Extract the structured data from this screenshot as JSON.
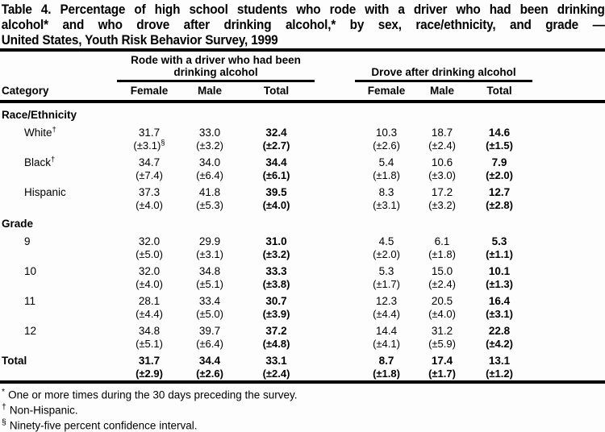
{
  "title_lines": [
    "Table 4. Percentage of high school students who rode with a driver who had been drinking",
    "alcohol* and who drove after drinking alcohol,* by sex, race/ethnicity, and grade —",
    "United States, Youth Risk Behavior Survey, 1999"
  ],
  "table": {
    "category_header": "Category",
    "groups": [
      {
        "label": "Rode with a driver who had been drinking alcohol"
      },
      {
        "label": "Drove after drinking alcohol"
      }
    ],
    "subheaders": [
      "Female",
      "Male",
      "Total"
    ],
    "rows": [
      {
        "type": "section",
        "label": "Race/Ethnicity"
      },
      {
        "type": "data",
        "label": "White",
        "label_sup": "†",
        "indent": true,
        "cells": [
          {
            "v": "31.7",
            "ci": "(±3.1)",
            "ci_sup": "§"
          },
          {
            "v": "33.0",
            "ci": "(±3.2)"
          },
          {
            "v": "32.4",
            "ci": "(±2.7)"
          },
          {
            "v": "10.3",
            "ci": "(±2.6)"
          },
          {
            "v": "18.7",
            "ci": "(±2.4)"
          },
          {
            "v": "14.6",
            "ci": "(±1.5)"
          }
        ]
      },
      {
        "type": "data",
        "label": "Black",
        "label_sup": "†",
        "indent": true,
        "cells": [
          {
            "v": "34.7",
            "ci": "(±7.4)"
          },
          {
            "v": "34.0",
            "ci": "(±6.4)"
          },
          {
            "v": "34.4",
            "ci": "(±6.1)"
          },
          {
            "v": "5.4",
            "ci": "(±1.8)"
          },
          {
            "v": "10.6",
            "ci": "(±3.0)"
          },
          {
            "v": "7.9",
            "ci": "(±2.0)"
          }
        ]
      },
      {
        "type": "data",
        "label": "Hispanic",
        "indent": true,
        "cells": [
          {
            "v": "37.3",
            "ci": "(±4.0)"
          },
          {
            "v": "41.8",
            "ci": "(±5.3)"
          },
          {
            "v": "39.5",
            "ci": "(±4.0)"
          },
          {
            "v": "8.3",
            "ci": "(±3.1)"
          },
          {
            "v": "17.2",
            "ci": "(±3.2)"
          },
          {
            "v": "12.7",
            "ci": "(±2.8)"
          }
        ]
      },
      {
        "type": "section",
        "label": "Grade"
      },
      {
        "type": "data",
        "label": "9",
        "indent": true,
        "cells": [
          {
            "v": "32.0",
            "ci": "(±5.0)"
          },
          {
            "v": "29.9",
            "ci": "(±3.1)"
          },
          {
            "v": "31.0",
            "ci": "(±3.2)"
          },
          {
            "v": "4.5",
            "ci": "(±2.0)"
          },
          {
            "v": "6.1",
            "ci": "(±1.8)"
          },
          {
            "v": "5.3",
            "ci": "(±1.1)"
          }
        ]
      },
      {
        "type": "data",
        "label": "10",
        "indent": true,
        "cells": [
          {
            "v": "32.0",
            "ci": "(±4.0)"
          },
          {
            "v": "34.8",
            "ci": "(±5.1)"
          },
          {
            "v": "33.3",
            "ci": "(±3.8)"
          },
          {
            "v": "5.3",
            "ci": "(±1.7)"
          },
          {
            "v": "15.0",
            "ci": "(±2.4)"
          },
          {
            "v": "10.1",
            "ci": "(±1.3)"
          }
        ]
      },
      {
        "type": "data",
        "label": "11",
        "indent": true,
        "cells": [
          {
            "v": "28.1",
            "ci": "(±4.4)"
          },
          {
            "v": "33.4",
            "ci": "(±5.0)"
          },
          {
            "v": "30.7",
            "ci": "(±3.9)"
          },
          {
            "v": "12.3",
            "ci": "(±4.4)"
          },
          {
            "v": "20.5",
            "ci": "(±4.0)"
          },
          {
            "v": "16.4",
            "ci": "(±3.1)"
          }
        ]
      },
      {
        "type": "data",
        "label": "12",
        "indent": true,
        "cells": [
          {
            "v": "34.8",
            "ci": "(±5.1)"
          },
          {
            "v": "39.7",
            "ci": "(±6.4)"
          },
          {
            "v": "37.2",
            "ci": "(±4.8)"
          },
          {
            "v": "14.4",
            "ci": "(±4.1)"
          },
          {
            "v": "31.2",
            "ci": "(±5.9)"
          },
          {
            "v": "22.8",
            "ci": "(±4.2)"
          }
        ]
      },
      {
        "type": "data",
        "label": "Total",
        "bold": true,
        "indent": false,
        "cells": [
          {
            "v": "31.7",
            "ci": "(±2.9)"
          },
          {
            "v": "34.4",
            "ci": "(±2.6)"
          },
          {
            "v": "33.1",
            "ci": "(±2.4)"
          },
          {
            "v": "8.7",
            "ci": "(±1.8)"
          },
          {
            "v": "17.4",
            "ci": "(±1.7)"
          },
          {
            "v": "13.1",
            "ci": "(±1.2)"
          }
        ]
      }
    ]
  },
  "footnotes": [
    {
      "marker": "*",
      "text": "One or more times during the 30 days preceding the survey."
    },
    {
      "marker": "†",
      "text": "Non-Hispanic."
    },
    {
      "marker": "§",
      "text": "Ninety-five percent confidence interval."
    }
  ],
  "colors": {
    "text": "#000000",
    "background": "#fdfdfd",
    "rule": "#000000"
  }
}
